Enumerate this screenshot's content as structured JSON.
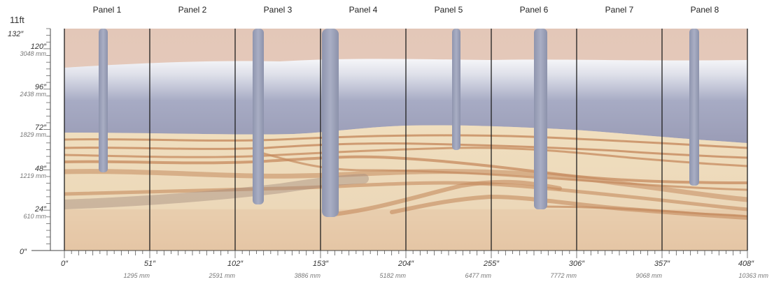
{
  "panels": [
    "Panel 1",
    "Panel 2",
    "Panel 3",
    "Panel 4",
    "Panel 5",
    "Panel 6",
    "Panel 7",
    "Panel 8"
  ],
  "y_axis": {
    "top_ft": "11ft",
    "top_in": "132″",
    "ticks": [
      {
        "in": "120″",
        "mm": "3048 mm"
      },
      {
        "in": "96″",
        "mm": "2438 mm"
      },
      {
        "in": "72″",
        "mm": "1829 mm"
      },
      {
        "in": "48″",
        "mm": "1219 mm"
      },
      {
        "in": "24″",
        "mm": "610 mm"
      }
    ],
    "zero": "0″"
  },
  "x_axis": {
    "zero": "0″",
    "ticks": [
      {
        "in": "51″",
        "mm": "1295 mm"
      },
      {
        "in": "102″",
        "mm": "2591 mm"
      },
      {
        "in": "153″",
        "mm": "3886 mm"
      },
      {
        "in": "204″",
        "mm": "5182 mm"
      },
      {
        "in": "255″",
        "mm": "6477 mm"
      },
      {
        "in": "306″",
        "mm": "7772 mm"
      },
      {
        "in": "357″",
        "mm": "9068 mm"
      },
      {
        "in": "408″",
        "mm": "10363 mm"
      }
    ]
  },
  "colors": {
    "sky_top": "#e6cdbf",
    "mist": "#f4f3f7",
    "blue_band": "#9ea3bf",
    "sand": "#ead9b9",
    "ground": "#e3c3a3",
    "stripe": "#c9895a",
    "pillar": "#9ba1b8",
    "divider": "#222222"
  }
}
